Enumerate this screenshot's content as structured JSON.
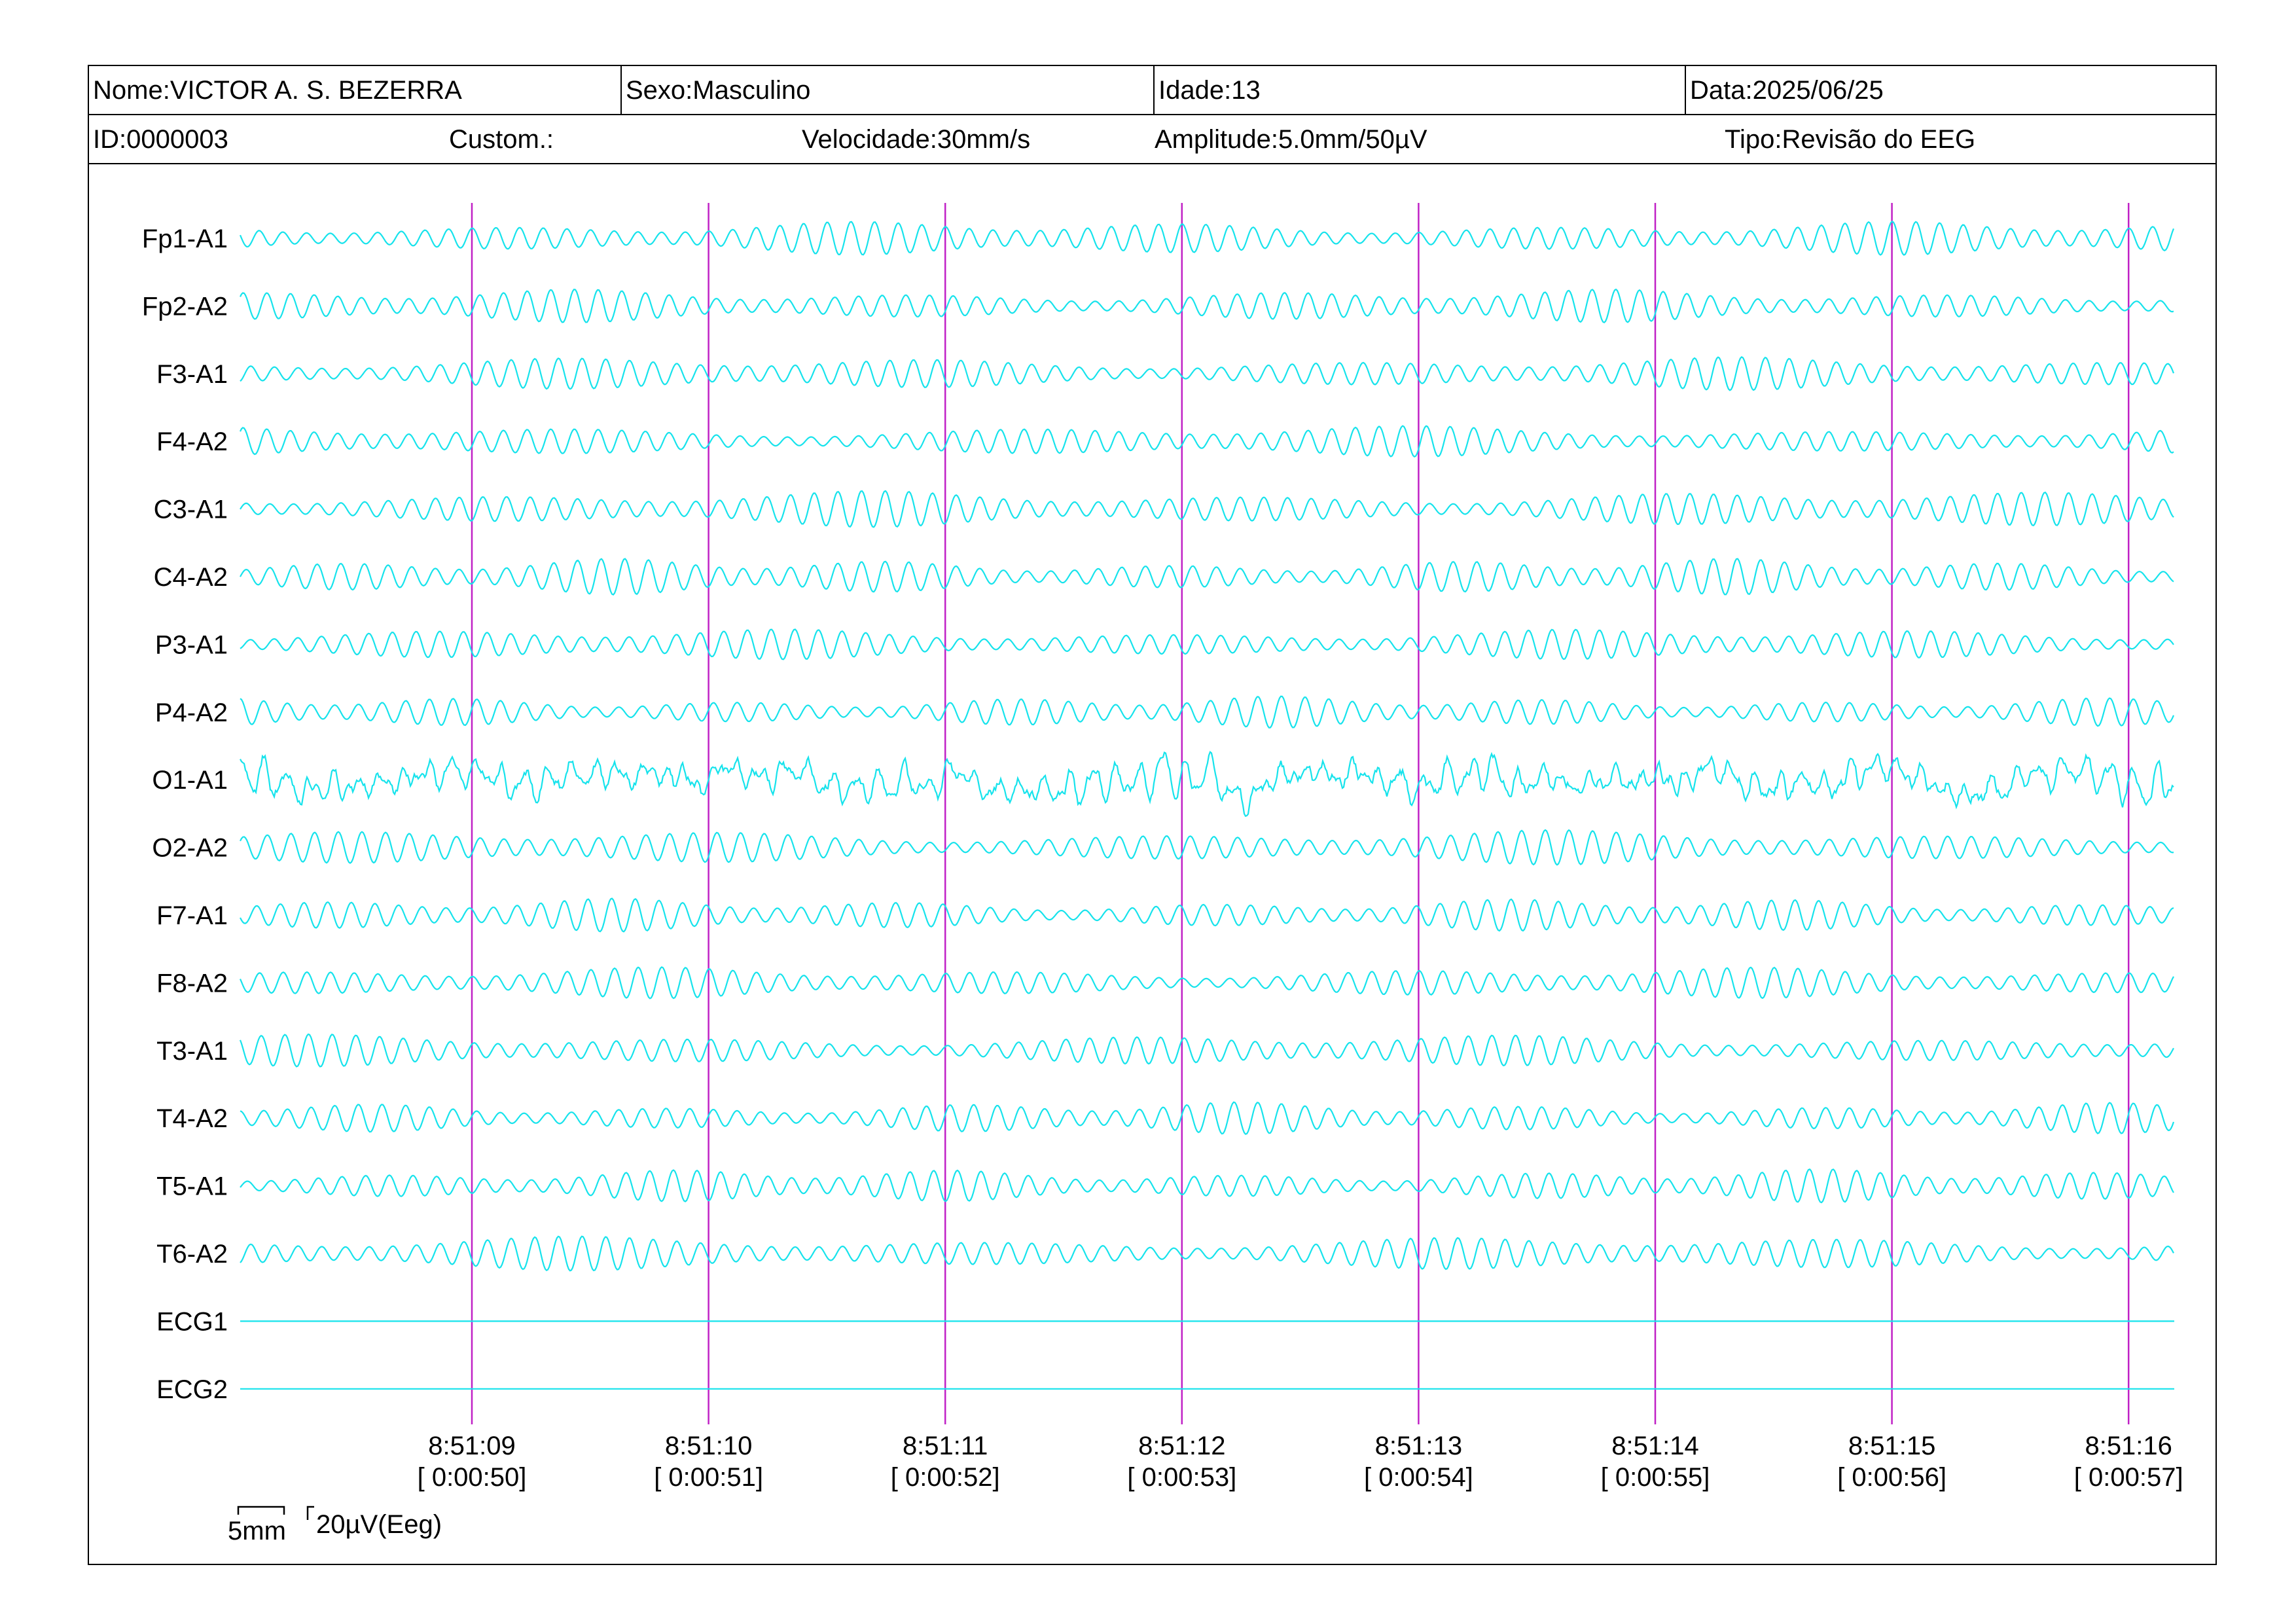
{
  "header": {
    "nome": "Nome:VICTOR A. S. BEZERRA",
    "sexo": "Sexo:Masculino",
    "idade": "Idade:13",
    "data": "Data:2025/06/25",
    "id": "ID:0000003",
    "custom": "Custom.:",
    "velocidade": "Velocidade:30mm/s",
    "amplitude": "Amplitude:5.0mm/50µV",
    "tipo": "Tipo:Revisão do EEG"
  },
  "scale_bar": {
    "time": "5mm",
    "amplitude": "20µV(Eeg)"
  },
  "colors": {
    "trace": "#16e3ec",
    "marker": "#c021c6",
    "border": "#000000"
  },
  "chart_data": {
    "type": "line",
    "title": "",
    "xlabel": "",
    "ylabel": "",
    "channels": [
      "Fp1-A1",
      "Fp2-A2",
      "F3-A1",
      "F4-A2",
      "C3-A1",
      "C4-A2",
      "P3-A1",
      "P4-A2",
      "O1-A1",
      "O2-A2",
      "F7-A1",
      "F8-A2",
      "T3-A1",
      "T4-A2",
      "T5-A1",
      "T6-A2",
      "ECG1",
      "ECG2"
    ],
    "time_markers": [
      {
        "clock": "8:51:09",
        "elapsed": "[ 0:00:50]"
      },
      {
        "clock": "8:51:10",
        "elapsed": "[ 0:00:51]"
      },
      {
        "clock": "8:51:11",
        "elapsed": "[ 0:00:52]"
      },
      {
        "clock": "8:51:12",
        "elapsed": "[ 0:00:53]"
      },
      {
        "clock": "8:51:13",
        "elapsed": "[ 0:00:54]"
      },
      {
        "clock": "8:51:14",
        "elapsed": "[ 0:00:55]"
      },
      {
        "clock": "8:51:15",
        "elapsed": "[ 0:00:56]"
      },
      {
        "clock": "8:51:16",
        "elapsed": "[ 0:00:57]"
      }
    ],
    "x_range_seconds": [
      0,
      9.1
    ],
    "sweep_speed_mm_per_s": 30,
    "dominant_frequency_hz": 10,
    "grid": false,
    "legend": "none"
  }
}
